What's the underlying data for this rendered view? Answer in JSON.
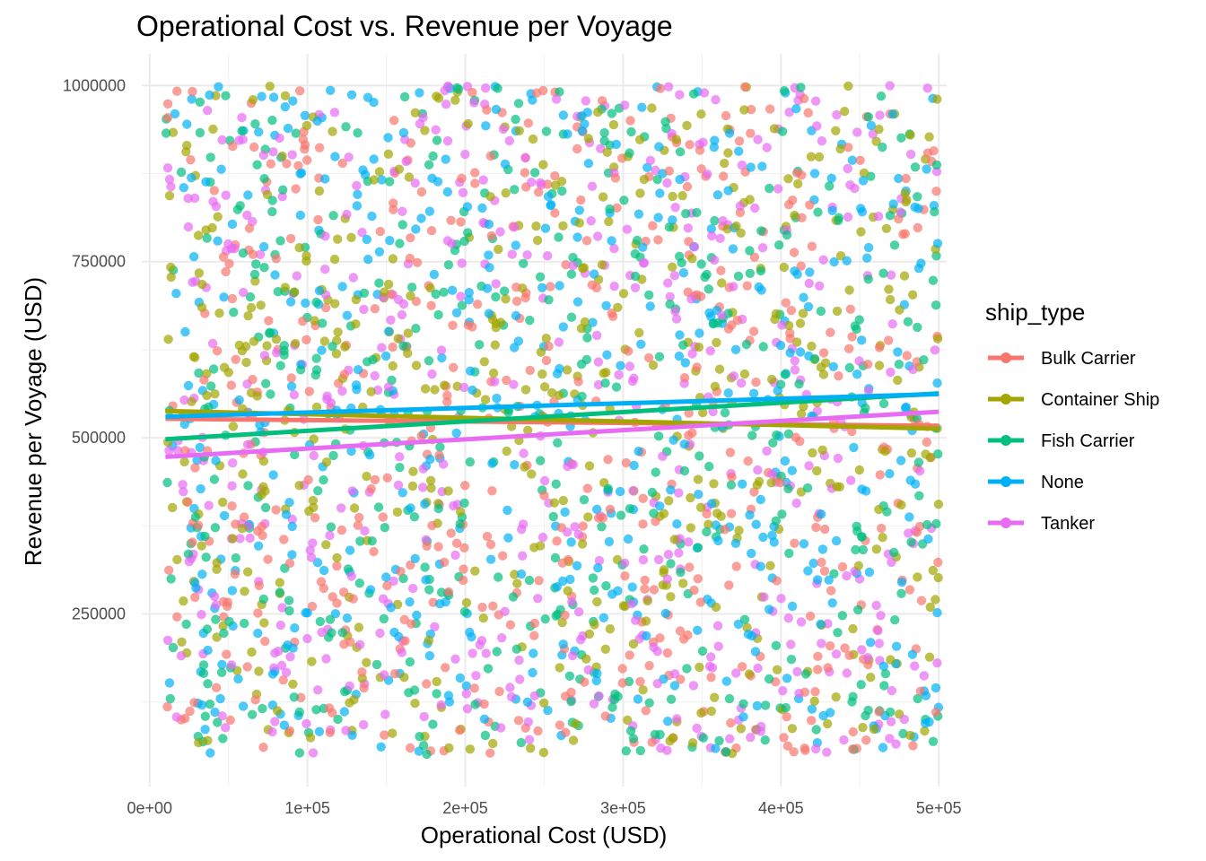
{
  "chart_data": {
    "type": "scatter",
    "title": "Operational Cost vs. Revenue per Voyage",
    "xlabel": "Operational Cost (USD)",
    "ylabel": "Revenue per Voyage (USD)",
    "xlim": [
      -5000,
      505000
    ],
    "ylim": [
      5000,
      1045000
    ],
    "x_ticks": [
      0,
      100000,
      200000,
      300000,
      400000,
      500000
    ],
    "x_tick_labels": [
      "0e+00",
      "1e+05",
      "2e+05",
      "3e+05",
      "4e+05",
      "5e+05"
    ],
    "y_ticks": [
      250000,
      500000,
      750000,
      1000000
    ],
    "y_tick_labels": [
      "250000",
      "500000",
      "750000",
      "1000000"
    ],
    "grid": true,
    "legend": {
      "title": "ship_type",
      "position": "right"
    },
    "point_opacity": 0.7,
    "points_per_series_approx": 500,
    "series": [
      {
        "name": "Bulk Carrier",
        "color": "#F8766D",
        "trend": {
          "x": [
            10000,
            500000
          ],
          "y": [
            527000,
            517000
          ]
        }
      },
      {
        "name": "Container Ship",
        "color": "#A3A500",
        "trend": {
          "x": [
            10000,
            500000
          ],
          "y": [
            538000,
            513000
          ]
        }
      },
      {
        "name": "Fish Carrier",
        "color": "#00BF7D",
        "trend": {
          "x": [
            10000,
            500000
          ],
          "y": [
            498000,
            563000
          ]
        }
      },
      {
        "name": "None",
        "color": "#00B0F6",
        "trend": {
          "x": [
            10000,
            500000
          ],
          "y": [
            530000,
            562000
          ]
        }
      },
      {
        "name": "Tanker",
        "color": "#E76BF3",
        "trend": {
          "x": [
            10000,
            500000
          ],
          "y": [
            473000,
            537000
          ]
        }
      }
    ]
  }
}
